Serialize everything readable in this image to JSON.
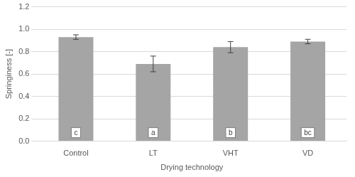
{
  "chart_data": {
    "type": "bar",
    "x_label": "Drying technology",
    "y_label": "Springiness [-]",
    "categories": [
      "Control",
      "LT",
      "VHT",
      "VD"
    ],
    "values": [
      0.93,
      0.69,
      0.84,
      0.89
    ],
    "errors": [
      0.02,
      0.07,
      0.05,
      0.02
    ],
    "letters": [
      "c",
      "a",
      "b",
      "bc"
    ],
    "color": "#a5a5a5",
    "ylim": [
      0,
      1.2
    ],
    "yticks": [
      {
        "value": 0,
        "label": "0.0"
      },
      {
        "value": 0.2,
        "label": "0.2"
      },
      {
        "value": 0.4,
        "label": "0.4"
      },
      {
        "value": 0.6,
        "label": "0.6"
      },
      {
        "value": 0.8,
        "label": "0.8"
      },
      {
        "value": 1,
        "label": "1.0"
      },
      {
        "value": 1.2,
        "label": "1.2"
      }
    ],
    "grid": true
  }
}
